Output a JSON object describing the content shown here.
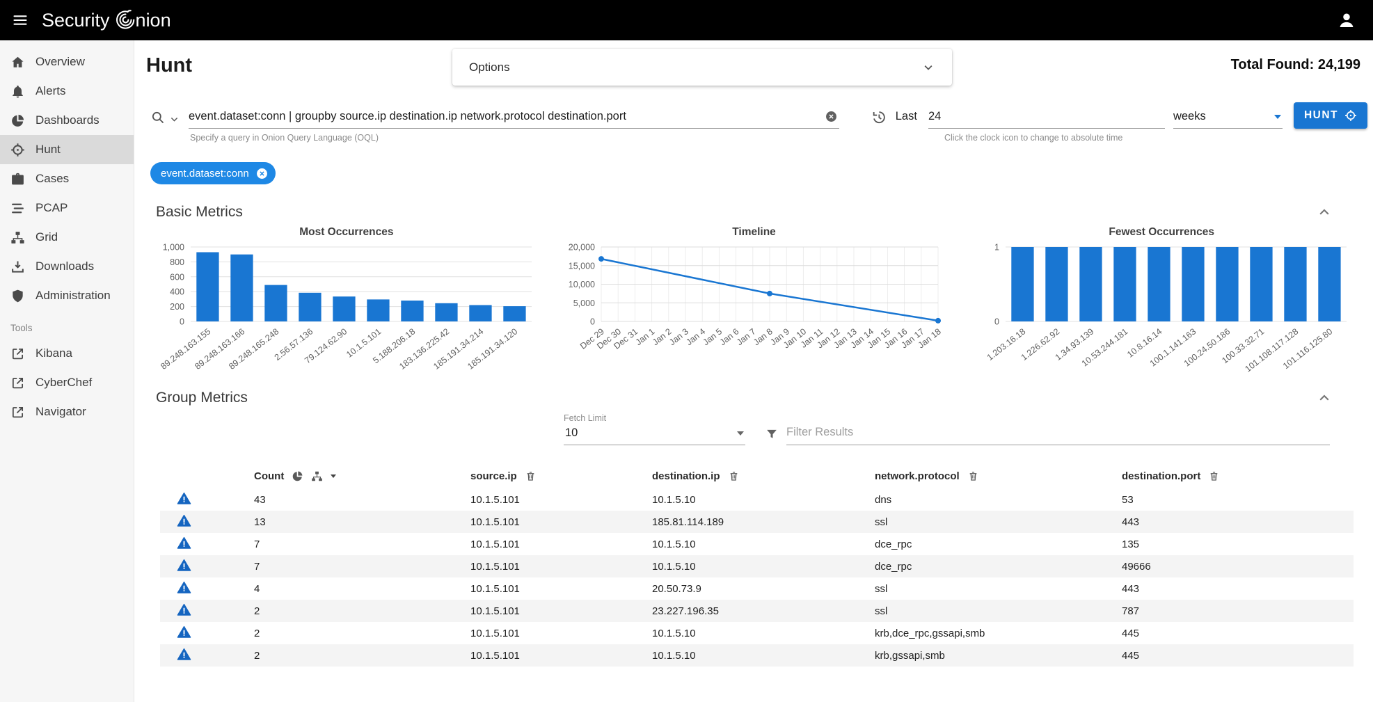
{
  "brand": {
    "prefix": "Security",
    "suffix": "nion"
  },
  "colors": {
    "accent": "#1976d2",
    "chip_blue": "#1e88e5",
    "topbar": "#000000",
    "warning_icon": "#1565c0",
    "sidebar_active": "#dadada"
  },
  "sidebar": {
    "items": [
      {
        "label": "Overview",
        "icon": "home-icon"
      },
      {
        "label": "Alerts",
        "icon": "bell-icon"
      },
      {
        "label": "Dashboards",
        "icon": "pie-chart-icon"
      },
      {
        "label": "Hunt",
        "icon": "crosshairs-icon",
        "active": true
      },
      {
        "label": "Cases",
        "icon": "briefcase-icon"
      },
      {
        "label": "PCAP",
        "icon": "stream-icon"
      },
      {
        "label": "Grid",
        "icon": "sitemap-icon"
      },
      {
        "label": "Downloads",
        "icon": "download-icon"
      },
      {
        "label": "Administration",
        "icon": "shield-icon"
      }
    ],
    "tools_label": "Tools",
    "tools": [
      {
        "label": "Kibana",
        "icon": "external-link-icon"
      },
      {
        "label": "CyberChef",
        "icon": "external-link-icon"
      },
      {
        "label": "Navigator",
        "icon": "external-link-icon"
      }
    ]
  },
  "header": {
    "page_title": "Hunt",
    "options_label": "Options",
    "total_found_label": "Total Found:",
    "total_found_value": "24,199"
  },
  "query": {
    "value": "event.dataset:conn | groupby source.ip destination.ip network.protocol destination.port",
    "oql_help": "Specify a query in Onion Query Language (OQL)",
    "time_label": "Last",
    "time_value": "24",
    "time_unit": "weeks",
    "time_help": "Click the clock icon to change to absolute time",
    "hunt_button_label": "HUNT",
    "filter_chip": "event.dataset:conn"
  },
  "basic_metrics": {
    "title": "Basic Metrics"
  },
  "group_metrics": {
    "title": "Group Metrics",
    "fetch_limit_label": "Fetch Limit",
    "fetch_limit_value": "10",
    "filter_placeholder": "Filter Results",
    "table": {
      "columns": [
        "Count",
        "source.ip",
        "destination.ip",
        "network.protocol",
        "destination.port"
      ],
      "rows": [
        {
          "count": "43",
          "source_ip": "10.1.5.101",
          "destination_ip": "10.1.5.10",
          "network_protocol": "dns",
          "destination_port": "53"
        },
        {
          "count": "13",
          "source_ip": "10.1.5.101",
          "destination_ip": "185.81.114.189",
          "network_protocol": "ssl",
          "destination_port": "443"
        },
        {
          "count": "7",
          "source_ip": "10.1.5.101",
          "destination_ip": "10.1.5.10",
          "network_protocol": "dce_rpc",
          "destination_port": "135"
        },
        {
          "count": "7",
          "source_ip": "10.1.5.101",
          "destination_ip": "10.1.5.10",
          "network_protocol": "dce_rpc",
          "destination_port": "49666"
        },
        {
          "count": "4",
          "source_ip": "10.1.5.101",
          "destination_ip": "20.50.73.9",
          "network_protocol": "ssl",
          "destination_port": "443"
        },
        {
          "count": "2",
          "source_ip": "10.1.5.101",
          "destination_ip": "23.227.196.35",
          "network_protocol": "ssl",
          "destination_port": "787"
        },
        {
          "count": "2",
          "source_ip": "10.1.5.101",
          "destination_ip": "10.1.5.10",
          "network_protocol": "krb,dce_rpc,gssapi,smb",
          "destination_port": "445"
        },
        {
          "count": "2",
          "source_ip": "10.1.5.101",
          "destination_ip": "10.1.5.10",
          "network_protocol": "krb,gssapi,smb",
          "destination_port": "445"
        }
      ]
    }
  },
  "chart_data": [
    {
      "type": "bar",
      "title": "Most Occurrences",
      "categories": [
        "89.248.163.155",
        "89.248.163.166",
        "89.248.165.248",
        "2.56.57.136",
        "79.124.62.90",
        "10.1.5.101",
        "5.188.206.18",
        "183.136.225.42",
        "185.191.34.214",
        "185.191.34.120"
      ],
      "values": [
        930,
        900,
        490,
        385,
        335,
        295,
        280,
        245,
        220,
        205
      ],
      "ylim": [
        0,
        1000
      ],
      "yticks": [
        0,
        200,
        400,
        600,
        800,
        1000
      ],
      "bar_color": "#1976d2",
      "grid": "horizontal"
    },
    {
      "type": "line",
      "title": "Timeline",
      "x": [
        "Dec 29",
        "Dec 30",
        "Dec 31",
        "Jan 1",
        "Jan 2",
        "Jan 3",
        "Jan 4",
        "Jan 5",
        "Jan 6",
        "Jan 7",
        "Jan 8",
        "Jan 9",
        "Jan 10",
        "Jan 11",
        "Jan 12",
        "Jan 13",
        "Jan 14",
        "Jan 15",
        "Jan 16",
        "Jan 17",
        "Jan 18"
      ],
      "points": [
        {
          "x": "Dec 29",
          "y": 16800
        },
        {
          "x": "Jan 8",
          "y": 7500
        },
        {
          "x": "Jan 18",
          "y": 200
        }
      ],
      "ylim": [
        0,
        20000
      ],
      "yticks": [
        0,
        5000,
        10000,
        15000,
        20000
      ],
      "line_color": "#1976d2",
      "grid": "both"
    },
    {
      "type": "bar",
      "title": "Fewest Occurrences",
      "categories": [
        "1.203.16.18",
        "1.226.62.92",
        "1.34.93.139",
        "10.53.244.181",
        "10.8.16.14",
        "100.1.141.163",
        "100.24.50.186",
        "100.33.32.71",
        "101.108.117.128",
        "101.116.125.80"
      ],
      "values": [
        1,
        1,
        1,
        1,
        1,
        1,
        1,
        1,
        1,
        1
      ],
      "ylim": [
        0,
        1
      ],
      "yticks": [
        0,
        1
      ],
      "bar_color": "#1976d2",
      "grid": "horizontal"
    }
  ]
}
